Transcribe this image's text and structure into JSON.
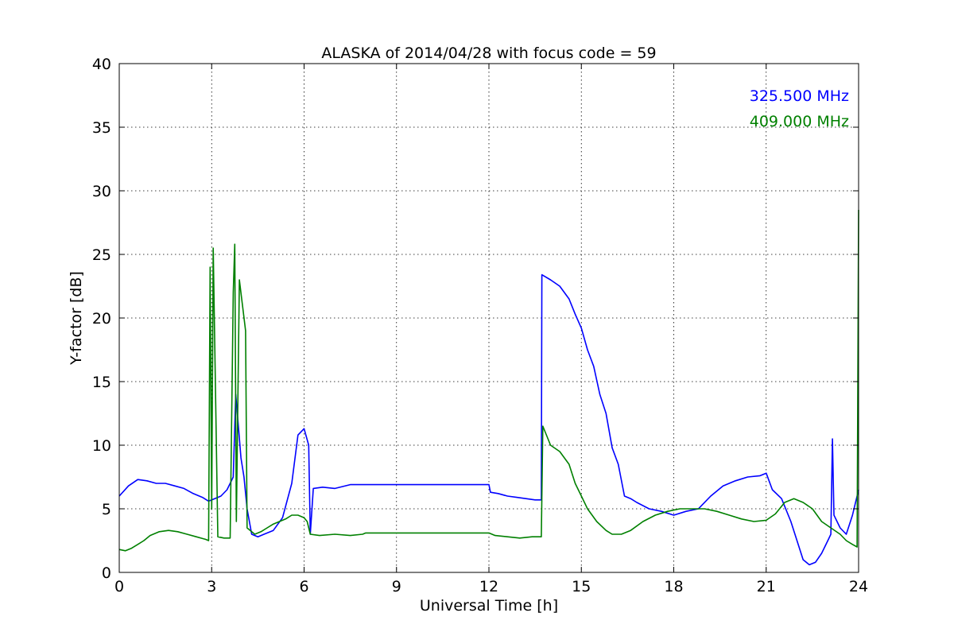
{
  "chart_data": {
    "type": "line",
    "title": "ALASKA of 2014/04/28 with focus code = 59",
    "xlabel": "Universal Time [h]",
    "ylabel": "Y-factor [dB]",
    "xlim": [
      0,
      24
    ],
    "ylim": [
      0,
      40
    ],
    "xticks": [
      0,
      3,
      6,
      9,
      12,
      15,
      18,
      21,
      24
    ],
    "yticks": [
      0,
      5,
      10,
      15,
      20,
      25,
      30,
      35,
      40
    ],
    "grid": true,
    "legend_position": "top-right",
    "series": [
      {
        "name": "325.500 MHz",
        "color": "#0000ff",
        "x": [
          0,
          0.3,
          0.6,
          0.9,
          1.2,
          1.5,
          1.8,
          2.1,
          2.4,
          2.7,
          2.9,
          3.1,
          3.3,
          3.5,
          3.7,
          3.78,
          3.85,
          3.95,
          4.05,
          4.15,
          4.3,
          4.5,
          4.7,
          5.0,
          5.3,
          5.6,
          5.8,
          6.0,
          6.15,
          6.2,
          6.3,
          6.6,
          7.0,
          7.5,
          8.0,
          12.0,
          12.05,
          12.3,
          12.6,
          12.9,
          13.2,
          13.5,
          13.7,
          13.72,
          14.0,
          14.3,
          14.6,
          14.8,
          15.0,
          15.2,
          15.4,
          15.6,
          15.8,
          16.0,
          16.2,
          16.4,
          16.6,
          16.8,
          17.2,
          17.6,
          18.0,
          18.4,
          18.8,
          19.2,
          19.6,
          20.0,
          20.4,
          20.8,
          21.0,
          21.2,
          21.5,
          21.8,
          22.0,
          22.2,
          22.4,
          22.6,
          22.8,
          23.0,
          23.1,
          23.15,
          23.2,
          23.4,
          23.6,
          23.8,
          24.0
        ],
        "y": [
          6.0,
          6.8,
          7.3,
          7.2,
          7.0,
          7.0,
          6.8,
          6.6,
          6.2,
          5.9,
          5.6,
          5.8,
          6.0,
          6.5,
          7.5,
          14.0,
          12.0,
          9.0,
          7.5,
          5.0,
          3.0,
          2.8,
          3.0,
          3.3,
          4.3,
          7.0,
          10.8,
          11.3,
          10.0,
          3.0,
          6.6,
          6.7,
          6.6,
          6.9,
          6.9,
          6.9,
          6.3,
          6.2,
          6.0,
          5.9,
          5.8,
          5.7,
          5.7,
          23.4,
          23.0,
          22.5,
          21.5,
          20.3,
          19.2,
          17.5,
          16.2,
          14.0,
          12.5,
          9.8,
          8.5,
          6.0,
          5.8,
          5.5,
          5.0,
          4.8,
          4.5,
          4.8,
          5.0,
          6.0,
          6.8,
          7.2,
          7.5,
          7.6,
          7.8,
          6.5,
          5.8,
          4.0,
          2.5,
          1.0,
          0.6,
          0.8,
          1.5,
          2.5,
          3.0,
          10.5,
          4.5,
          3.5,
          3.0,
          4.5,
          6.5
        ]
      },
      {
        "name": "409.000 MHz",
        "color": "#008000",
        "x": [
          0,
          0.2,
          0.4,
          0.6,
          0.8,
          1.0,
          1.3,
          1.6,
          1.9,
          2.2,
          2.5,
          2.8,
          2.9,
          2.95,
          3.0,
          3.05,
          3.2,
          3.4,
          3.6,
          3.7,
          3.75,
          3.8,
          3.9,
          4.0,
          4.1,
          4.15,
          4.25,
          4.4,
          4.6,
          4.8,
          5.0,
          5.2,
          5.4,
          5.6,
          5.8,
          6.0,
          6.1,
          6.2,
          6.5,
          7.0,
          7.5,
          7.9,
          8.0,
          12.0,
          12.2,
          12.6,
          13.0,
          13.4,
          13.7,
          13.75,
          14.0,
          14.3,
          14.6,
          14.8,
          15.0,
          15.2,
          15.5,
          15.8,
          16.0,
          16.3,
          16.6,
          17.0,
          17.4,
          17.8,
          18.2,
          18.6,
          19.0,
          19.4,
          19.8,
          20.2,
          20.6,
          21.0,
          21.3,
          21.6,
          21.9,
          22.2,
          22.5,
          22.8,
          23.1,
          23.4,
          23.6,
          23.8,
          23.95,
          24.0
        ],
        "y": [
          1.8,
          1.7,
          1.9,
          2.2,
          2.5,
          2.9,
          3.2,
          3.3,
          3.2,
          3.0,
          2.8,
          2.6,
          2.5,
          24.0,
          5.0,
          25.5,
          2.8,
          2.7,
          2.7,
          22.0,
          25.8,
          4.0,
          23.0,
          21.0,
          19.0,
          3.5,
          3.3,
          3.0,
          3.2,
          3.5,
          3.8,
          4.0,
          4.2,
          4.5,
          4.5,
          4.3,
          4.0,
          3.0,
          2.9,
          3.0,
          2.9,
          3.0,
          3.1,
          3.1,
          2.9,
          2.8,
          2.7,
          2.8,
          2.8,
          11.5,
          10.0,
          9.5,
          8.5,
          7.0,
          6.0,
          5.0,
          4.0,
          3.3,
          3.0,
          3.0,
          3.3,
          4.0,
          4.5,
          4.8,
          5.0,
          5.0,
          5.0,
          4.8,
          4.5,
          4.2,
          4.0,
          4.1,
          4.6,
          5.5,
          5.8,
          5.5,
          5.0,
          4.0,
          3.5,
          3.0,
          2.5,
          2.2,
          2.0,
          28.5
        ]
      }
    ]
  }
}
